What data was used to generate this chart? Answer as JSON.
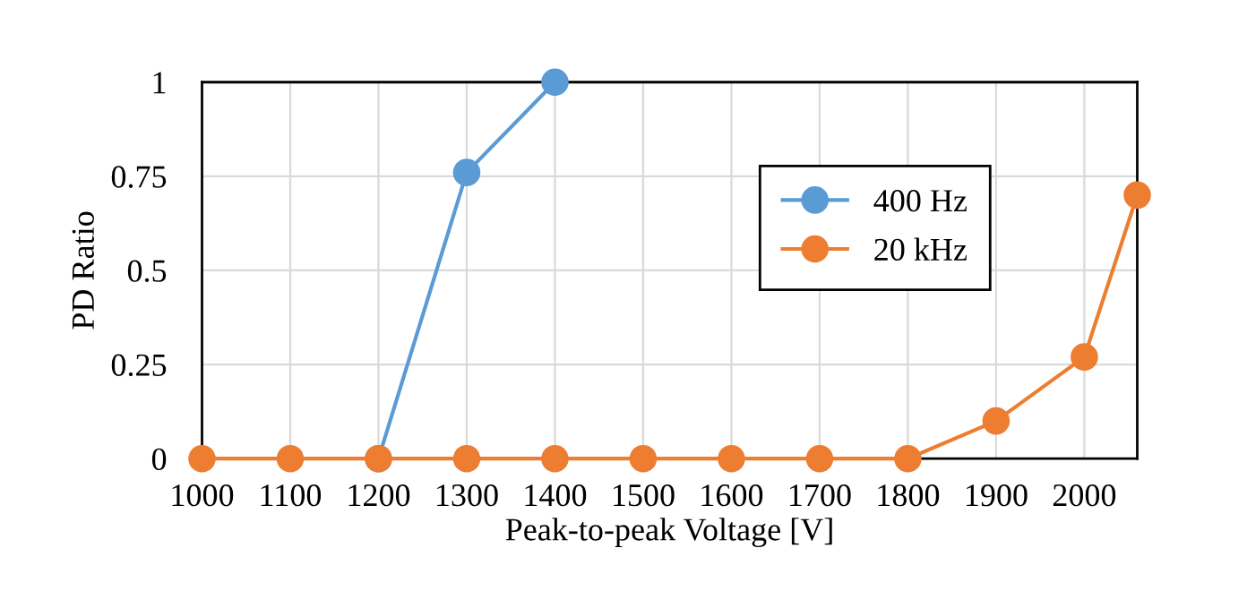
{
  "chart_data": {
    "type": "line",
    "xlabel": "Peak-to-peak Voltage [V]",
    "ylabel": "PD Ratio",
    "xlim": [
      1000,
      2060
    ],
    "xticks": [
      1000,
      1100,
      1200,
      1300,
      1400,
      1500,
      1600,
      1700,
      1800,
      1900,
      2000
    ],
    "ylim": [
      0,
      1
    ],
    "yticks": [
      0,
      {
        "value": 0.25,
        "label": "0.25"
      },
      {
        "value": 0.5,
        "label": "0.5"
      },
      {
        "value": 0.75,
        "label": "0.75"
      },
      1
    ],
    "grid": true,
    "legend": "top right",
    "marker": "circle",
    "line_style": "solid",
    "series": [
      {
        "name": "400 Hz",
        "color": "#5b9bd5",
        "x": [
          1200,
          1300,
          1400
        ],
        "values": [
          0,
          0.76,
          1
        ]
      },
      {
        "name": "20 kHz",
        "color": "#ed7d31",
        "x": [
          1000,
          1100,
          1200,
          1300,
          1400,
          1500,
          1600,
          1700,
          1800,
          1900,
          2000,
          2060
        ],
        "values": [
          0,
          0,
          0,
          0,
          0,
          0,
          0,
          0,
          0,
          0.1,
          0.27,
          0.7
        ]
      }
    ]
  }
}
